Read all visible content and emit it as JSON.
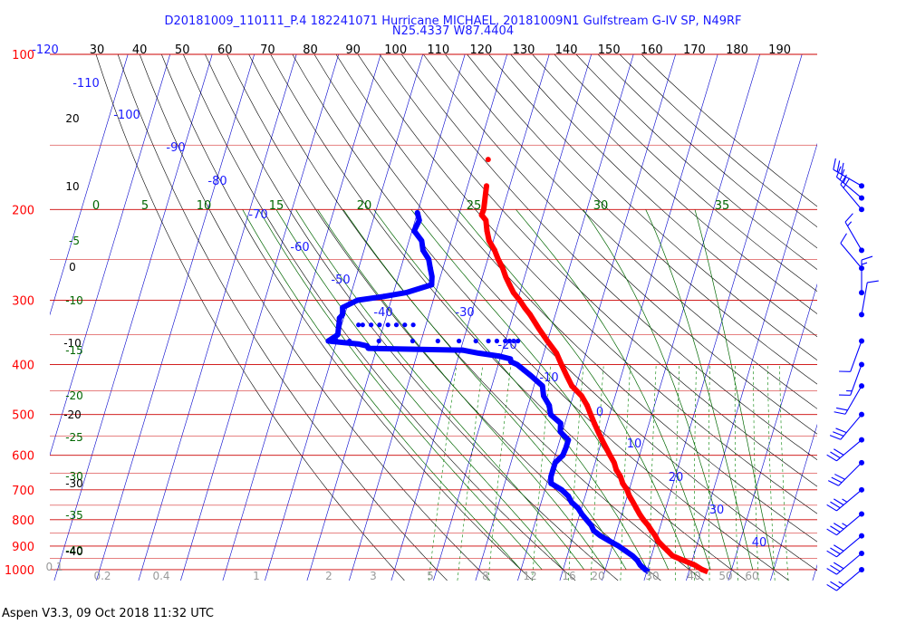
{
  "header": {
    "title_line1": "D20181009_110111_P.4 182241071 Hurricane MICHAEL, 20181009N1 Gulfstream G-IV SP, N49RF",
    "title_line2": "N25.4337 W87.4404"
  },
  "footer": {
    "text": "Aspen V3.3, 09 Oct 2018  11:32 UTC"
  },
  "chart_data": {
    "type": "line",
    "diagram": "skew-T log-P",
    "pressure_levels_hPa": [
      "100",
      "200",
      "300",
      "400",
      "500",
      "600",
      "700",
      "800",
      "900",
      "1000"
    ],
    "temperature_axis_labels": [
      "-120",
      "30",
      "40",
      "50",
      "60",
      "70",
      "80",
      "90",
      "100",
      "110",
      "120",
      "130",
      "140",
      "150",
      "160",
      "170",
      "180",
      "190"
    ],
    "isotherm_labels": [
      "-110",
      "-100",
      "-90",
      "-80",
      "-70",
      "-60",
      "-50",
      "-40",
      "-30",
      "-20",
      "-10",
      "0",
      "10",
      "20",
      "30",
      "40"
    ],
    "mixing_ratio_labels": [
      "0.1",
      "0.2",
      "0.4",
      "1",
      "2",
      "3",
      "5",
      "8",
      "12",
      "16",
      "20",
      "30",
      "40",
      "50",
      "60"
    ],
    "moist_adiabat_labels": [
      "0",
      "5",
      "10",
      "15",
      "20",
      "25",
      "30",
      "35"
    ],
    "dry_adiabat_labels": [
      "20",
      "10",
      "0",
      "-5",
      "-10",
      "-10",
      "-15",
      "-20",
      "-20",
      "-25",
      "-30",
      "-30",
      "-35",
      "-40",
      "-40"
    ],
    "series": [
      {
        "color": "#ff0000",
        "points": [
          [
            180,
            -55.5
          ],
          [
            200,
            -54.5
          ],
          [
            205,
            -54.6
          ],
          [
            210,
            -53.2
          ],
          [
            220,
            -52.2
          ],
          [
            230,
            -51.0
          ],
          [
            240,
            -49.0
          ],
          [
            250,
            -47.5
          ],
          [
            260,
            -45.8
          ],
          [
            270,
            -44.5
          ],
          [
            280,
            -43.0
          ],
          [
            290,
            -41.5
          ],
          [
            300,
            -39.5
          ],
          [
            310,
            -37.8
          ],
          [
            320,
            -36.0
          ],
          [
            340,
            -33.0
          ],
          [
            360,
            -30.0
          ],
          [
            380,
            -27.0
          ],
          [
            400,
            -25.0
          ],
          [
            420,
            -23.0
          ],
          [
            440,
            -21.0
          ],
          [
            460,
            -18.0
          ],
          [
            480,
            -16.0
          ],
          [
            500,
            -14.5
          ],
          [
            520,
            -13.0
          ],
          [
            540,
            -11.5
          ],
          [
            560,
            -10.0
          ],
          [
            580,
            -8.5
          ],
          [
            600,
            -7.0
          ],
          [
            620,
            -5.5
          ],
          [
            640,
            -4.5
          ],
          [
            660,
            -3.0
          ],
          [
            680,
            -2.0
          ],
          [
            700,
            -0.5
          ],
          [
            720,
            0.5
          ],
          [
            740,
            1.8
          ],
          [
            760,
            3.0
          ],
          [
            780,
            4.2
          ],
          [
            800,
            5.5
          ],
          [
            820,
            7.0
          ],
          [
            840,
            8.2
          ],
          [
            860,
            9.5
          ],
          [
            880,
            10.5
          ],
          [
            900,
            12.0
          ],
          [
            920,
            13.5
          ],
          [
            940,
            15.0
          ],
          [
            960,
            18.0
          ],
          [
            980,
            21.0
          ],
          [
            1000,
            23.0
          ],
          [
            1010,
            24.5
          ]
        ]
      },
      {
        "color": "#0000ff",
        "points": [
          [
            203,
            -70.0
          ],
          [
            210,
            -69.0
          ],
          [
            220,
            -69.5
          ],
          [
            230,
            -67.0
          ],
          [
            240,
            -66.0
          ],
          [
            250,
            -64.0
          ],
          [
            260,
            -63.0
          ],
          [
            270,
            -62.0
          ],
          [
            280,
            -61.5
          ],
          [
            290,
            -67.0
          ],
          [
            295,
            -72.0
          ],
          [
            300,
            -78.0
          ],
          [
            310,
            -81.0
          ],
          [
            320,
            -80.5
          ],
          [
            325,
            -81.0
          ],
          [
            330,
            -80.8
          ],
          [
            340,
            -80.5
          ],
          [
            350,
            -80.2
          ],
          [
            360,
            -82.0
          ],
          [
            365,
            -74.5
          ],
          [
            368,
            -72.5
          ],
          [
            372,
            -72.0
          ],
          [
            375,
            -49.5
          ],
          [
            380,
            -45.5
          ],
          [
            385,
            -40.5
          ],
          [
            390,
            -37.5
          ],
          [
            395,
            -37.2
          ],
          [
            400,
            -35.5
          ],
          [
            410,
            -33.5
          ],
          [
            420,
            -31.5
          ],
          [
            440,
            -28.0
          ],
          [
            460,
            -27.0
          ],
          [
            480,
            -25.0
          ],
          [
            500,
            -24.0
          ],
          [
            520,
            -21.0
          ],
          [
            540,
            -20.5
          ],
          [
            560,
            -18.0
          ],
          [
            580,
            -18.0
          ],
          [
            600,
            -18.2
          ],
          [
            620,
            -19.5
          ],
          [
            640,
            -19.5
          ],
          [
            660,
            -19.5
          ],
          [
            680,
            -19.0
          ],
          [
            700,
            -16.0
          ],
          [
            720,
            -14.0
          ],
          [
            740,
            -12.8
          ],
          [
            760,
            -10.8
          ],
          [
            780,
            -9.5
          ],
          [
            800,
            -8.0
          ],
          [
            820,
            -6.5
          ],
          [
            840,
            -5.5
          ],
          [
            860,
            -3.5
          ],
          [
            880,
            -1.0
          ],
          [
            900,
            1.5
          ],
          [
            920,
            3.5
          ],
          [
            940,
            5.5
          ],
          [
            960,
            7.0
          ],
          [
            980,
            8.0
          ],
          [
            1000,
            9.5
          ],
          [
            1010,
            10.5
          ]
        ]
      }
    ],
    "dewpoint_scatter": [
      [
        335,
        -76
      ],
      [
        335,
        -75
      ],
      [
        335,
        -73
      ],
      [
        335,
        -71
      ],
      [
        335,
        -69
      ],
      [
        335,
        -67
      ],
      [
        335,
        -65
      ],
      [
        335,
        -63
      ],
      [
        360,
        -80
      ],
      [
        360,
        -77
      ],
      [
        360,
        -70
      ],
      [
        360,
        -62
      ],
      [
        360,
        -56
      ],
      [
        360,
        -51
      ],
      [
        360,
        -47
      ],
      [
        360,
        -44
      ],
      [
        360,
        -42
      ],
      [
        360,
        -40
      ],
      [
        360,
        -39
      ],
      [
        360,
        -38
      ],
      [
        360,
        -37
      ]
    ],
    "wind_barbs": [
      {
        "p": 180,
        "dir": 300,
        "kts": 30
      },
      {
        "p": 190,
        "dir": 310,
        "kts": 25
      },
      {
        "p": 200,
        "dir": 320,
        "kts": 20
      },
      {
        "p": 240,
        "dir": 330,
        "kts": 15
      },
      {
        "p": 260,
        "dir": 320,
        "kts": 10
      },
      {
        "p": 290,
        "dir": 0,
        "kts": 15
      },
      {
        "p": 320,
        "dir": 10,
        "kts": 10
      },
      {
        "p": 360,
        "dir": 200,
        "kts": 10
      },
      {
        "p": 400,
        "dir": 200,
        "kts": 15
      },
      {
        "p": 440,
        "dir": 210,
        "kts": 20
      },
      {
        "p": 500,
        "dir": 220,
        "kts": 30
      },
      {
        "p": 560,
        "dir": 230,
        "kts": 30
      },
      {
        "p": 620,
        "dir": 225,
        "kts": 30
      },
      {
        "p": 700,
        "dir": 230,
        "kts": 35
      },
      {
        "p": 780,
        "dir": 230,
        "kts": 35
      },
      {
        "p": 860,
        "dir": 230,
        "kts": 30
      },
      {
        "p": 930,
        "dir": 230,
        "kts": 30
      },
      {
        "p": 1000,
        "dir": 230,
        "kts": 25
      }
    ],
    "colors": {
      "isobar": "#cc0000",
      "isotherm": "#0000cc",
      "dry_adiabat": "#000000",
      "moist_adiabat": "#006600",
      "mixing_ratio": "#008000",
      "temperature": "#ff0000",
      "dewpoint": "#0000ff"
    }
  }
}
